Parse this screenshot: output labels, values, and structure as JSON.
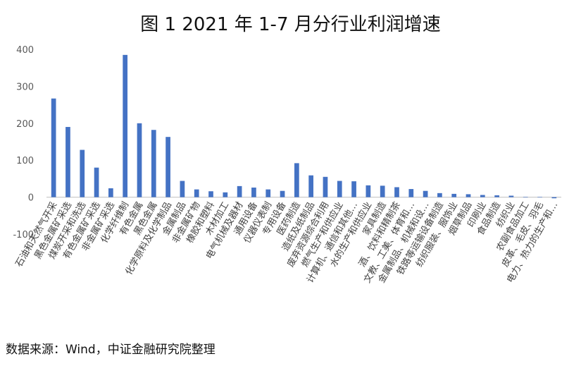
{
  "title": "图 1 2021 年 1-7 月分行业利润增速",
  "source": "数据来源：Wind，中证金融研究院整理",
  "colors": {
    "bar": "#4472C4",
    "axis": "#BFBFBF"
  },
  "chart_data": {
    "type": "bar",
    "title": "图 1 2021 年 1-7 月分行业利润增速",
    "xlabel": "",
    "ylabel": "",
    "ylim": [
      -100,
      400
    ],
    "yticks": [
      "400",
      "300",
      "200",
      "100",
      "0",
      "-100"
    ],
    "grid": false,
    "legend": "none",
    "categories": [
      "石油和天然气开采",
      "黑色金属矿采选",
      "煤炭开采和洗选",
      "有色金属矿采选",
      "非金属矿采选",
      "化学纤维制",
      "有色金属",
      "黑色金属",
      "化学原料及化学制品",
      "金属制品",
      "非金属矿物",
      "橡胶和塑料",
      "木材加工",
      "电气机械及器材",
      "通用设备",
      "仪器仪表制",
      "专用设备",
      "医药制造",
      "造纸及纸制品",
      "废弃资源综合利用",
      "燃气生产和供应业",
      "计算机、通信和其他…",
      "水的生产和供应业",
      "家具制造",
      "酒、饮料和精制茶",
      "文教、工美、体育和…",
      "金属制品、机械和设…",
      "铁路等运输设备制造",
      "纺织服装、服饰业",
      "烟草制品",
      "印刷业",
      "食品制造",
      "纺织业",
      "农副食品加工",
      "皮革、毛皮、羽毛",
      "电力、热力的生产和…"
    ],
    "values": [
      267,
      190,
      128,
      80,
      24,
      385,
      200,
      182,
      163,
      44,
      21,
      16,
      13,
      30,
      26,
      21,
      17,
      92,
      59,
      55,
      44,
      43,
      32,
      31,
      27,
      22,
      17,
      11,
      9,
      8,
      6,
      5,
      4,
      1,
      0.5,
      -3
    ]
  }
}
